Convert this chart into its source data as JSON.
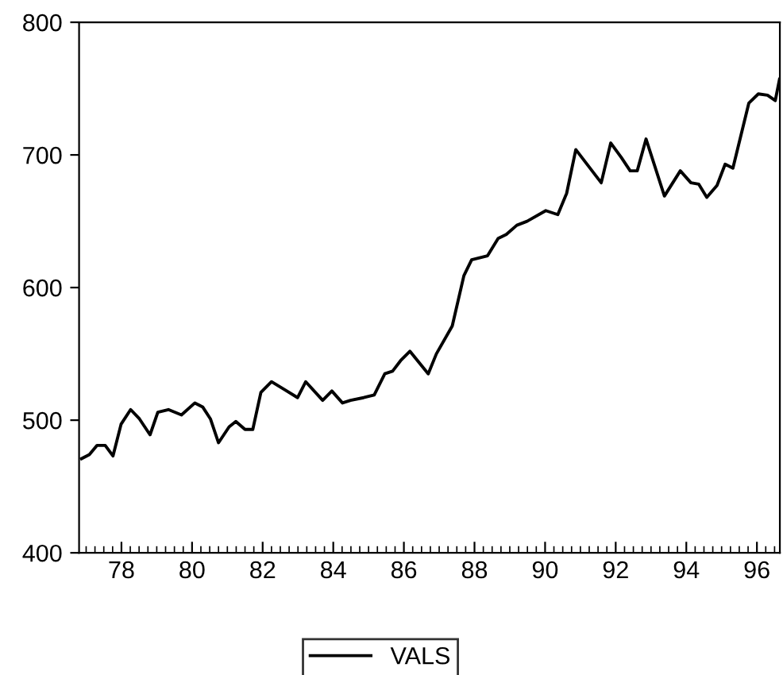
{
  "chart_data": {
    "type": "line",
    "x": [
      76.87,
      77.09,
      77.31,
      77.54,
      77.76,
      77.99,
      78.26,
      78.51,
      78.81,
      79.03,
      79.33,
      79.7,
      80.08,
      80.3,
      80.52,
      80.75,
      81.05,
      81.24,
      81.5,
      81.72,
      81.95,
      82.25,
      82.62,
      82.99,
      83.22,
      83.7,
      83.96,
      84.26,
      84.49,
      84.86,
      85.16,
      85.46,
      85.68,
      85.91,
      86.17,
      86.69,
      86.92,
      87.37,
      87.7,
      87.92,
      88.37,
      88.67,
      88.9,
      89.2,
      89.49,
      90.02,
      90.36,
      90.61,
      90.87,
      91.59,
      91.86,
      92.16,
      92.41,
      92.61,
      92.86,
      93.38,
      93.83,
      94.13,
      94.35,
      94.58,
      94.87,
      95.1,
      95.32,
      95.77,
      96.04,
      96.3,
      96.52,
      96.64
    ],
    "series": [
      {
        "name": "VALS",
        "color": "#000000",
        "values": [
          471,
          474,
          481,
          481,
          473,
          497,
          508,
          501,
          489,
          506,
          508,
          504,
          513,
          510,
          501,
          483,
          495,
          499,
          493,
          493,
          521,
          529,
          523,
          517,
          529,
          515,
          522,
          513,
          515,
          517,
          519,
          535,
          537,
          545,
          552,
          535,
          550,
          571,
          609,
          621,
          624,
          637,
          640,
          647,
          650,
          658,
          655,
          671,
          704,
          679,
          709,
          698,
          688,
          688,
          712,
          669,
          688,
          679,
          678,
          668,
          677,
          693,
          690,
          739,
          746,
          745,
          741,
          757
        ]
      }
    ],
    "xlim": [
      76.8,
      96.65
    ],
    "xticks": [
      78,
      80,
      82,
      84,
      86,
      88,
      90,
      92,
      94,
      96
    ],
    "ylim": [
      400,
      800
    ],
    "yticks": [
      400,
      500,
      600,
      700,
      800
    ],
    "grid": false,
    "legend": "bottom",
    "marker": "none",
    "line_style": "solid"
  }
}
